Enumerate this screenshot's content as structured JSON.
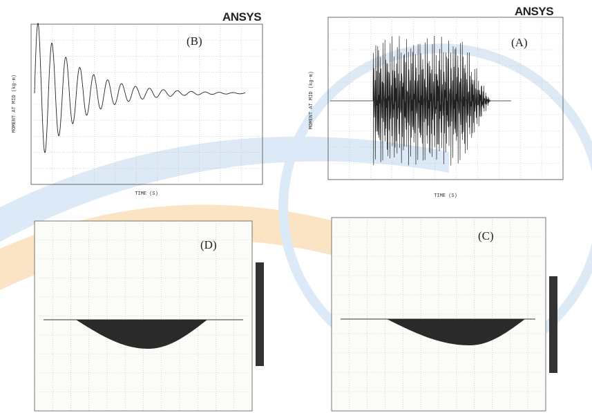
{
  "panels": [
    {
      "label": "(B)",
      "logo": "ANSYS",
      "y_axis_title": "MOMENT AT MID (kg-m)",
      "x_axis_title": "TIME (S)"
    },
    {
      "label": "(A)",
      "logo": "ANSYS",
      "y_axis_title": "MOMENT AT MID (kg-m)",
      "x_axis_title": "TIME (S)"
    },
    {
      "label": "(D)"
    },
    {
      "label": "(C)"
    }
  ]
}
